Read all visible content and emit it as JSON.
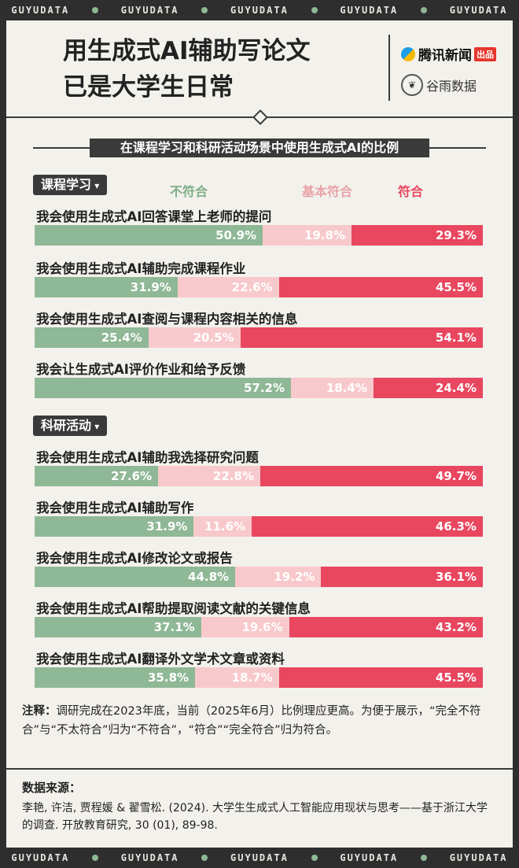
{
  "band_text": "GUYUDATA",
  "header": {
    "title_line1": "用生成式AI辅助写论文",
    "title_line2": "已是大学生日常",
    "logo_tencent": "腾讯新闻",
    "logo_tencent_tag": "出品",
    "logo_guyu": "谷雨数据"
  },
  "subtitle": "在课程学习和科研活动场景中使用生成式AI的比例",
  "legend": {
    "disagree": "不符合",
    "basic": "基本符合",
    "agree": "符合"
  },
  "colors": {
    "disagree": "#8fb896",
    "basic": "#f8c9cc",
    "agree": "#e8475f"
  },
  "chart_data": {
    "type": "bar",
    "stacked": true,
    "orientation": "horizontal",
    "unit": "%",
    "series": [
      {
        "name": "不符合"
      },
      {
        "name": "基本符合"
      },
      {
        "name": "符合"
      }
    ],
    "groups": [
      {
        "name": "课程学习",
        "items": [
          {
            "label": "我会使用生成式AI回答课堂上老师的提问",
            "values": [
              50.9,
              19.8,
              29.3
            ]
          },
          {
            "label": "我会使用生成式AI辅助完成课程作业",
            "values": [
              31.9,
              22.6,
              45.5
            ]
          },
          {
            "label": "我会使用生成式AI查阅与课程内容相关的信息",
            "values": [
              25.4,
              20.5,
              54.1
            ]
          },
          {
            "label": "我会让生成式AI评价作业和给予反馈",
            "values": [
              57.2,
              18.4,
              24.4
            ]
          }
        ]
      },
      {
        "name": "科研活动",
        "items": [
          {
            "label": "我会使用生成式AI辅助我选择研究问题",
            "values": [
              27.6,
              22.8,
              49.7
            ]
          },
          {
            "label": "我会使用生成式AI辅助写作",
            "values": [
              31.9,
              11.6,
              46.3
            ]
          },
          {
            "label": "我会使用生成式AI修改论文或报告",
            "values": [
              44.8,
              19.2,
              36.1
            ]
          },
          {
            "label": "我会使用生成式AI帮助提取阅读文献的关键信息",
            "values": [
              37.1,
              19.6,
              43.2
            ]
          },
          {
            "label": "我会使用生成式AI翻译外文学术文章或资料",
            "values": [
              35.8,
              18.7,
              45.5
            ]
          }
        ]
      }
    ]
  },
  "note": {
    "label": "注释：",
    "text": "调研完成在2023年底，当前（2025年6月）比例理应更高。为便于展示，“完全不符合”与“不太符合”归为“不符合”，“符合”“完全符合”归为符合。"
  },
  "source": {
    "label": "数据来源：",
    "text": "李艳, 许洁, 贾程媛 & 翟雪松. (2024). 大学生生成式人工智能应用现状与思考——基于浙江大学的调查. 开放教育研究, 30 (01), 89-98."
  }
}
